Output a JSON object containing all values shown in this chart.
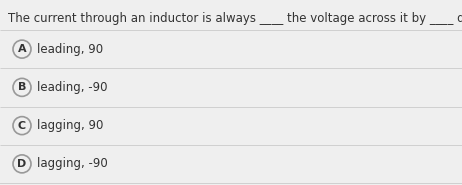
{
  "question": "The current through an inductor is always ____ the voltage across it by ____ degrees.",
  "options": [
    {
      "label": "A",
      "text": "leading, 90"
    },
    {
      "label": "B",
      "text": "leading, -90"
    },
    {
      "label": "C",
      "text": "lagging, 90"
    },
    {
      "label": "D",
      "text": "lagging, -90"
    }
  ],
  "bg_color": "#efefef",
  "divider_color": "#d0d0d0",
  "text_color": "#333333",
  "circle_edge_color": "#999999",
  "circle_face_color": "#efefef",
  "question_fontsize": 8.5,
  "option_fontsize": 8.5,
  "label_fontsize": 8.0,
  "fig_width": 4.62,
  "fig_height": 1.85,
  "dpi": 100
}
